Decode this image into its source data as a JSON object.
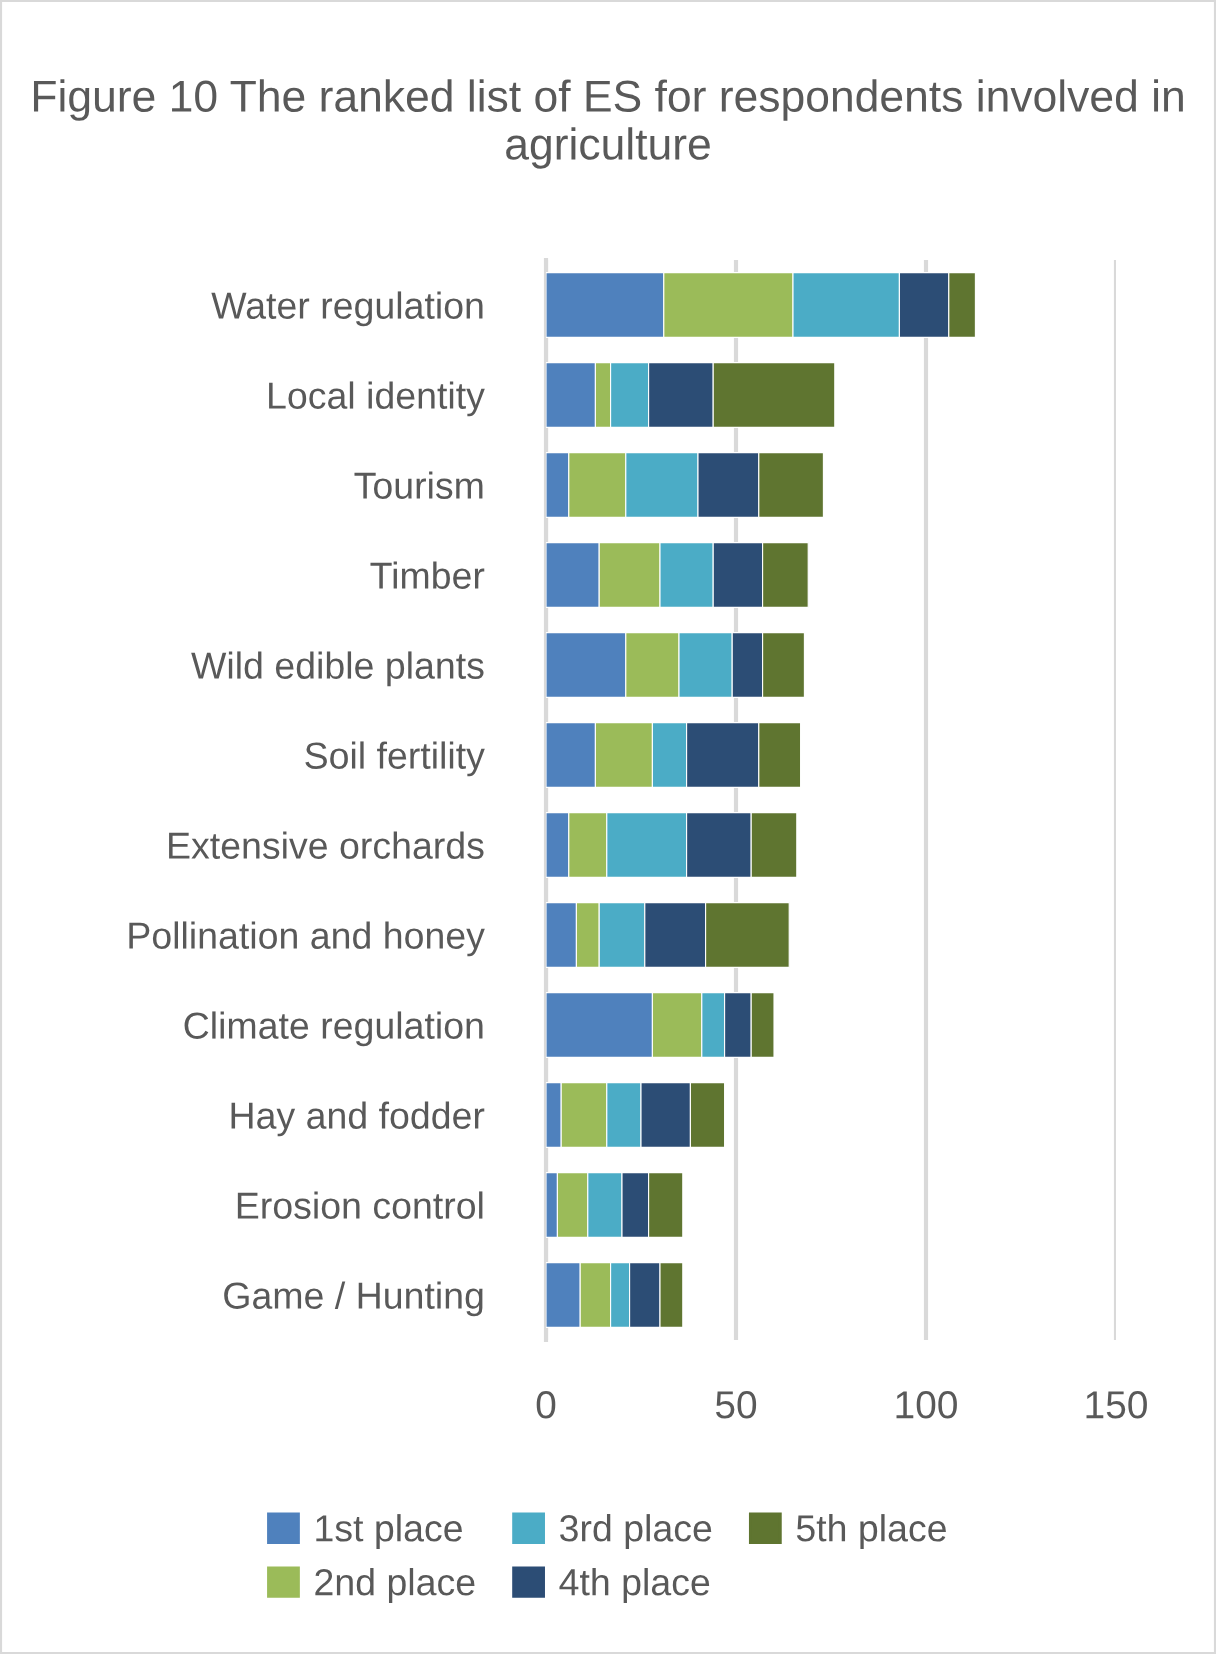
{
  "chart_data": {
    "type": "bar",
    "orientation": "horizontal",
    "stacked": true,
    "title": "Figure 10 The ranked list of ES for respondents involved in agriculture",
    "categories": [
      "Water regulation",
      "Local identity",
      "Tourism",
      "Timber",
      "Wild edible plants",
      "Soil fertility",
      "Extensive orchards",
      "Pollination and honey",
      "Climate regulation",
      "Hay and fodder",
      "Erosion control",
      "Game / Hunting"
    ],
    "series": [
      {
        "name": "1st place",
        "color": "#4f81bd",
        "values": [
          31,
          13,
          6,
          14,
          21,
          13,
          6,
          8,
          28,
          4,
          3,
          9
        ]
      },
      {
        "name": "2nd place",
        "color": "#9bbb59",
        "values": [
          34,
          4,
          15,
          16,
          14,
          15,
          10,
          6,
          13,
          12,
          8,
          8
        ]
      },
      {
        "name": "3rd place",
        "color": "#4bacc6",
        "values": [
          28,
          10,
          19,
          14,
          14,
          9,
          21,
          12,
          6,
          9,
          9,
          5
        ]
      },
      {
        "name": "4th place",
        "color": "#2c4d75",
        "values": [
          13,
          17,
          16,
          13,
          8,
          19,
          17,
          16,
          7,
          13,
          7,
          8
        ]
      },
      {
        "name": "5th place",
        "color": "#5f7530",
        "values": [
          7,
          32,
          17,
          12,
          11,
          11,
          12,
          22,
          6,
          9,
          9,
          6
        ]
      }
    ],
    "xlim": [
      0,
      150
    ],
    "xticks": [
      0,
      50,
      100,
      150
    ],
    "grid": "x",
    "legend": "bottom"
  }
}
